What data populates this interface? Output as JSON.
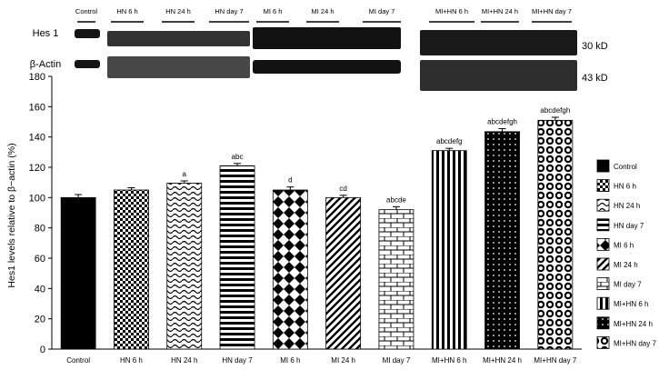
{
  "blot": {
    "lanes": [
      "Control",
      "HN 6 h",
      "HN 24 h",
      "HN day 7",
      "MI 6 h",
      "MI 24 h",
      "MI day 7",
      "MI+HN 6 h",
      "MI+HN 24 h",
      "MI+HN day 7"
    ],
    "rows": [
      {
        "label": "Hes 1",
        "size": "30 kD"
      },
      {
        "label": "β-Actin",
        "size": "43 kD"
      }
    ]
  },
  "chart_data": {
    "type": "bar",
    "ylabel": "Hes1 levels relative to β−actin (%)",
    "ylim": [
      0,
      180
    ],
    "yticks": [
      0,
      20,
      40,
      60,
      80,
      100,
      120,
      140,
      160,
      180
    ],
    "categories": [
      "Control",
      "HN 6 h",
      "HN 24 h",
      "HN day 7",
      "MI 6 h",
      "MI 24 h",
      "MI day 7",
      "MI+HN 6 h",
      "MI+HN 24 h",
      "MI+HN day 7"
    ],
    "values": [
      100,
      105,
      109.5,
      121,
      105,
      100,
      92,
      131,
      143.5,
      151
    ],
    "errors": [
      2,
      1.5,
      1.5,
      1.5,
      2,
      1.5,
      2,
      1.5,
      2,
      2
    ],
    "annotations": [
      "",
      "",
      "a",
      "abc",
      "d",
      "cd",
      "abcde",
      "abcdefg",
      "abcdefgh",
      "abcdefgh"
    ],
    "patterns": [
      "solid",
      "checker",
      "wave",
      "hstripe",
      "diamond",
      "diag",
      "brick",
      "vstripe",
      "dots",
      "circles"
    ],
    "legend": [
      "Control",
      "HN 6 h",
      "HN 24 h",
      "HN day 7",
      "MI 6 h",
      "MI 24 h",
      "MI day 7",
      "MI+HN 6 h",
      "MI+HN 24 h",
      "MI+HN day 7"
    ],
    "legend_position": "right",
    "grid": false
  }
}
